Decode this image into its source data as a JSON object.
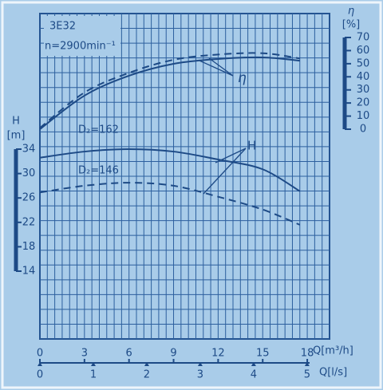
{
  "chart_data": {
    "type": "line",
    "title": "3E32",
    "subtitle": "n=2900min⁻¹",
    "xlabel": "Q[m³/h]",
    "x2label": "Q[l/s]",
    "ylabel": "H",
    "yunit": "[m]",
    "y2label": "η",
    "y2unit": "[%]",
    "xlim": [
      0,
      19.5
    ],
    "xticks": [
      0,
      3,
      6,
      9,
      12,
      15,
      18
    ],
    "x2lim": [
      0,
      5.42
    ],
    "x2ticks": [
      0,
      1,
      2,
      3,
      4,
      5
    ],
    "ylim": [
      14,
      34
    ],
    "yticks": [
      14,
      18,
      22,
      26,
      30,
      34
    ],
    "y2lim": [
      0,
      70
    ],
    "y2ticks": [
      0,
      10,
      20,
      30,
      40,
      50,
      60,
      70
    ],
    "x": [
      0,
      3,
      6,
      9,
      12,
      15,
      17.5
    ],
    "series": [
      {
        "name": "D₂=162",
        "color": "#1d4a86",
        "dash": false,
        "values": [
          32.6,
          33.6,
          34,
          33.6,
          32.3,
          30.7,
          27.1
        ]
      },
      {
        "name": "D₂=146",
        "color": "#1d4a86",
        "dash": true,
        "values": [
          26.9,
          28,
          28.5,
          28,
          26.2,
          24.1,
          21.6
        ]
      },
      {
        "color": "#1d4a86",
        "dash": false,
        "axis": "y2",
        "values": [
          0,
          25.6,
          40.8,
          49.9,
          53.6,
          54.8,
          52.3
        ]
      },
      {
        "color": "#1d4a86",
        "dash": true,
        "axis": "y2",
        "values": [
          1,
          28,
          43,
          53,
          57,
          58,
          54
        ]
      }
    ],
    "annotations": [
      "η",
      "H"
    ]
  }
}
